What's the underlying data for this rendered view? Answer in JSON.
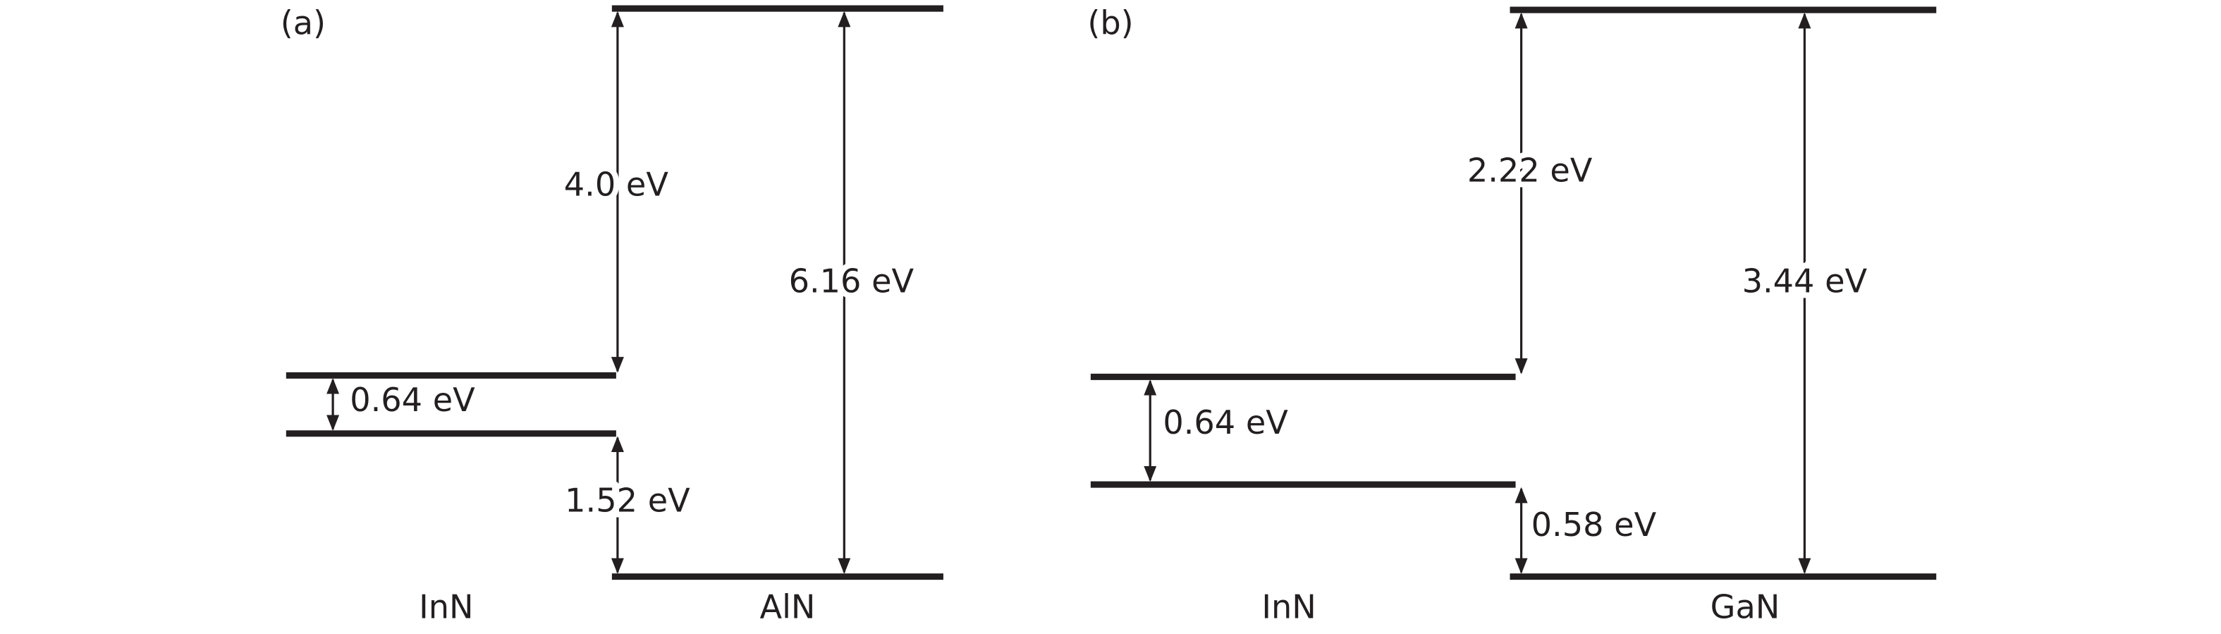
{
  "panels": [
    {
      "label": "(a)",
      "left_material": "InN",
      "right_material": "AlN",
      "left_gap": "0.64 eV",
      "conduction_offset": "4.0 eV",
      "valence_offset": "1.52 eV",
      "right_gap": "6.16 eV"
    },
    {
      "label": "(b)",
      "left_material": "InN",
      "right_material": "GaN",
      "left_gap": "0.64 eV",
      "conduction_offset": "2.22 eV",
      "valence_offset": "0.58 eV",
      "right_gap": "3.44 eV"
    }
  ]
}
